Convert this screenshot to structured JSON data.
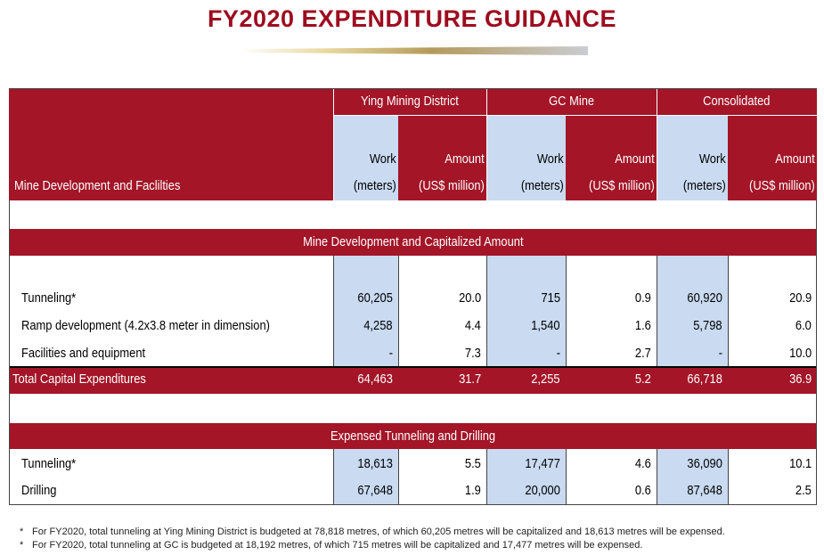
{
  "title": "FY2020 EXPENDITURE GUIDANCE",
  "header": {
    "row_label": "Mine Development and Faclilties",
    "groups": [
      "Ying Mining District",
      "GC Mine",
      "Consolidated"
    ],
    "work_line1": "Work",
    "work_line2": "(meters)",
    "amount_line1": "Amount",
    "amount_line2": "(US$ million)"
  },
  "section1": {
    "title": "Mine Development and Capitalized Amount",
    "rows": [
      {
        "label": "Tunneling*",
        "values": [
          "60,205",
          "20.0",
          "715",
          "0.9",
          "60,920",
          "20.9"
        ]
      },
      {
        "label": "Ramp development (4.2x3.8 meter in dimension)",
        "values": [
          "4,258",
          "4.4",
          "1,540",
          "1.6",
          "5,798",
          "6.0"
        ]
      },
      {
        "label": "Facilities and equipment",
        "values": [
          "-",
          "7.3",
          "-",
          "2.7",
          "-",
          "10.0"
        ]
      }
    ],
    "total": {
      "label": "Total Capital Expenditures",
      "values": [
        "64,463",
        "31.7",
        "2,255",
        "5.2",
        "66,718",
        "36.9"
      ]
    }
  },
  "section2": {
    "title": "Expensed Tunneling and Drilling",
    "rows": [
      {
        "label": "Tunneling*",
        "values": [
          "18,613",
          "5.5",
          "17,477",
          "4.6",
          "36,090",
          "10.1"
        ]
      },
      {
        "label": "Drilling",
        "values": [
          "67,648",
          "1.9",
          "20,000",
          "0.6",
          "87,648",
          "2.5"
        ]
      }
    ]
  },
  "footnotes": [
    {
      "mark": "*",
      "text": "For FY2020, total tunneling at Ying Mining District is budgeted at 78,818 metres, of which 60,205 metres will be capitalized and 18,613 metres will be expensed."
    },
    {
      "mark": "*",
      "text": "For FY2020, total tunneling at GC is budgeted at 18,192 metres, of which 715 metres will be capitalized and 17,477 metres will be expensed."
    }
  ],
  "colors": {
    "brand_red": "#a31527",
    "title_red": "#9d0b1f",
    "work_blue": "#c9daf1"
  }
}
